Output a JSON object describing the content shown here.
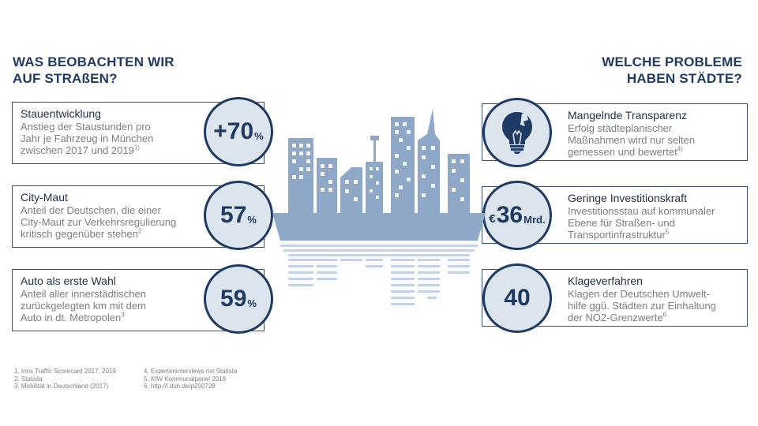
{
  "headings": {
    "left": [
      "WAS BEOBACHTEN WIR",
      "AUF STRAßEN?"
    ],
    "right": [
      "WELCHE PROBLEME",
      "HABEN STÄDTE?"
    ]
  },
  "left_cards": [
    {
      "title": "Stauentwicklung",
      "lines": [
        "Anstieg der Staustunden pro",
        "Jahr je Fahrzeug in München",
        "zwischen 2017 und 2019"
      ],
      "footnote": "1)",
      "value": "+70",
      "unit": "%"
    },
    {
      "title": "City-Maut",
      "lines": [
        "Anteil der Deutschen, die einer",
        "City-Maut zur Verkehrsregulierung",
        "kritisch gegenüber stehen"
      ],
      "footnote": "2",
      "value": "57",
      "unit": "%"
    },
    {
      "title": "Auto als erste Wahl",
      "lines": [
        "Anteil aller innerstädtischen",
        "zurückgelegten km mit dem",
        "Auto in dt. Metropolen"
      ],
      "footnote": "3",
      "value": "59",
      "unit": "%"
    }
  ],
  "right_cards": [
    {
      "title": "Mangelnde Transparenz",
      "lines": [
        "Erfolg städteplanischer",
        "Maßnahmen wird nur selten",
        "gemessen und bewertet"
      ],
      "footnote": "4)",
      "icon": "lightbulb-icon"
    },
    {
      "title": "Geringe Investitionskraft",
      "lines": [
        "Investitionsstau auf kommunaler",
        "Ebene für Straßen- und",
        "Transportinfrastruktur"
      ],
      "footnote": "5",
      "prefix": "€",
      "value": "36",
      "unit": "Mrd."
    },
    {
      "title": "Klageverfahren",
      "lines": [
        "Klagen der Deutschen Umwelt-",
        "hilfe ggü. Städten zur Einhaltung",
        "der NO2-Grenzwerte"
      ],
      "footnote": "6",
      "value": "40"
    }
  ],
  "footnotes_left": [
    "1. Inrix Traffic Scorecard 2017, 2019",
    "2. Statista",
    "3. Mobilität in Deutschland (2017)"
  ],
  "footnotes_right": [
    "4. Experteninterviews nxt Statista",
    "5. KfW Kommunalpanel 2019",
    "6. http://l.duh.de/p200728"
  ],
  "colors": {
    "navy": "#1f3b63",
    "circle_fill": "#dce4ee",
    "skyline": "#8fa8c8",
    "skyline_light": "#c5d3e5"
  }
}
